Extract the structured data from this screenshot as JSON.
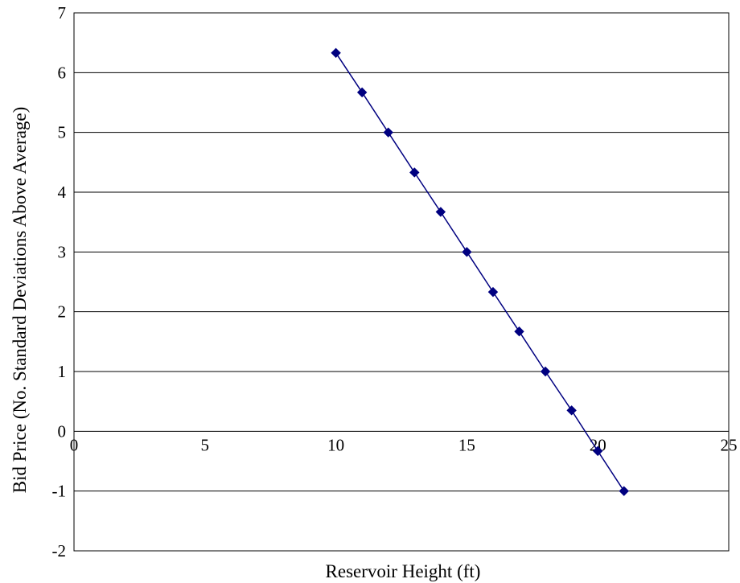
{
  "chart_data": {
    "type": "scatter",
    "title": "",
    "xlabel": "Reservoir Height (ft)",
    "ylabel": "Bid Price  (No. Standard Deviations Above Average)",
    "xlim": [
      0,
      25
    ],
    "ylim": [
      -2,
      7
    ],
    "xticks": [
      "0",
      "5",
      "10",
      "15",
      "20",
      "25"
    ],
    "yticks": [
      "-2",
      "-1",
      "0",
      "1",
      "2",
      "3",
      "4",
      "5",
      "6",
      "7"
    ],
    "grid": "horizontal",
    "legend": "none",
    "series": [
      {
        "marker": "diamond",
        "line": true,
        "color": "#000080",
        "x": [
          10,
          11,
          12,
          13,
          14,
          15,
          16,
          17,
          18,
          19,
          20,
          21
        ],
        "y": [
          6.33,
          5.67,
          5.0,
          4.33,
          3.67,
          3.0,
          2.33,
          1.67,
          1.0,
          0.35,
          -0.33,
          -1.0
        ]
      }
    ]
  }
}
